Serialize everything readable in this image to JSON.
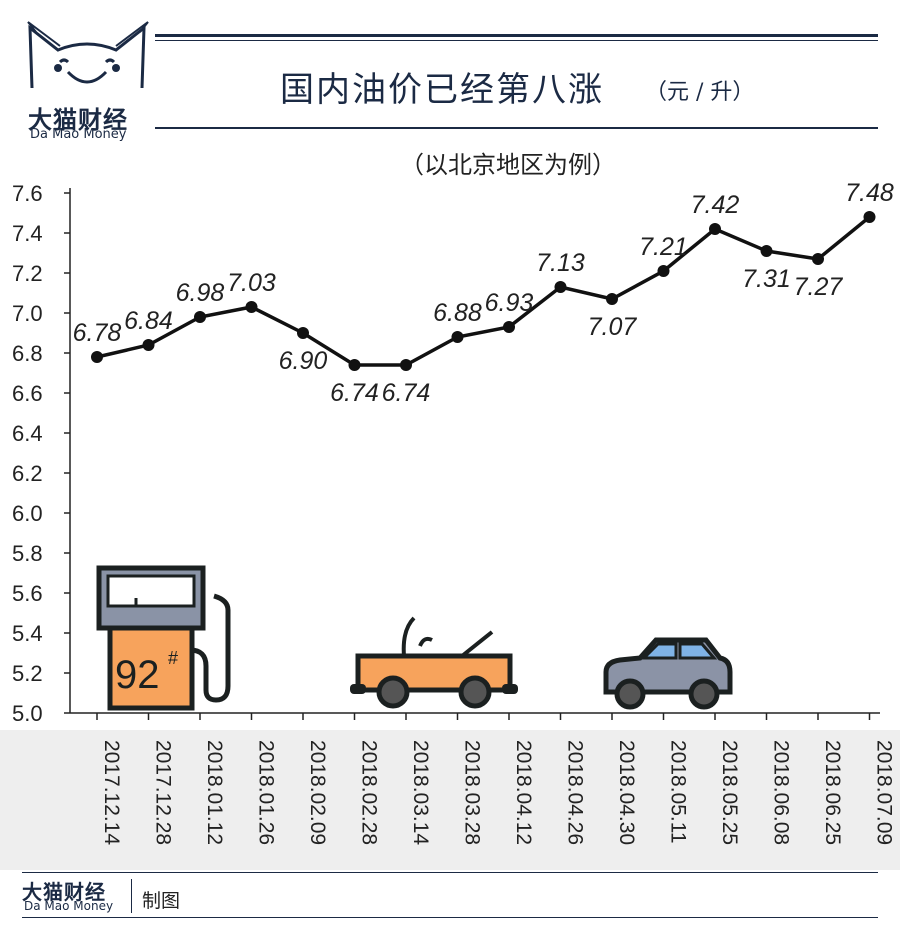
{
  "brand": {
    "name": "大猫财经",
    "subtitle": "Da Mao Money"
  },
  "footer": {
    "brand_name": "大猫财经",
    "brand_subtitle": "Da Mao Money",
    "made_label": "制图"
  },
  "chart_data": {
    "type": "line",
    "title": "国内油价已经第八涨",
    "unit": "（元 / 升）",
    "subtitle": "（以北京地区为例）",
    "xlabel": "",
    "ylabel": "",
    "ylim": [
      5.0,
      7.6
    ],
    "yticks": [
      "5.0",
      "5.2",
      "5.4",
      "5.6",
      "5.8",
      "6.0",
      "6.2",
      "6.4",
      "6.6",
      "6.8",
      "7.0",
      "7.2",
      "7.4",
      "7.6"
    ],
    "grid": false,
    "legend": "none",
    "categories": [
      "2017.12.14",
      "2017.12.28",
      "2018.01.12",
      "2018.01.26",
      "2018.02.09",
      "2018.02.28",
      "2018.03.14",
      "2018.03.28",
      "2018.04.12",
      "2018.04.26",
      "2018.04.30",
      "2018.05.11",
      "2018.05.25",
      "2018.06.08",
      "2018.06.25",
      "2018.07.09"
    ],
    "series": [
      {
        "values": [
          6.78,
          6.84,
          6.98,
          7.03,
          6.9,
          6.74,
          6.74,
          6.88,
          6.93,
          7.13,
          7.07,
          7.21,
          7.42,
          7.31,
          7.27,
          7.48
        ],
        "labels": [
          "6.78",
          "6.84",
          "6.98",
          "7.03",
          "6.90",
          "6.74",
          "6.74",
          "6.88",
          "6.93",
          "7.13",
          "7.07",
          "7.21",
          "7.42",
          "7.31",
          "7.27",
          "7.48"
        ],
        "label_side": [
          "above",
          "above",
          "above",
          "above",
          "below",
          "below",
          "below",
          "above",
          "above",
          "above",
          "below",
          "above",
          "above",
          "below",
          "below",
          "above"
        ]
      }
    ],
    "colors": {
      "line": "#111111",
      "axis_band": "#eeeeee",
      "navy": "#1b2a44",
      "pump_orange": "#f7a35c",
      "car_orange": "#f7a35c",
      "car_gray": "#8b93a6",
      "car_window": "#7fb3e6"
    },
    "decorations": {
      "pump_label": "92",
      "pump_sup": "#",
      "icons": [
        "fuel-pump-icon",
        "convertible-car-icon",
        "sedan-car-icon"
      ]
    }
  }
}
